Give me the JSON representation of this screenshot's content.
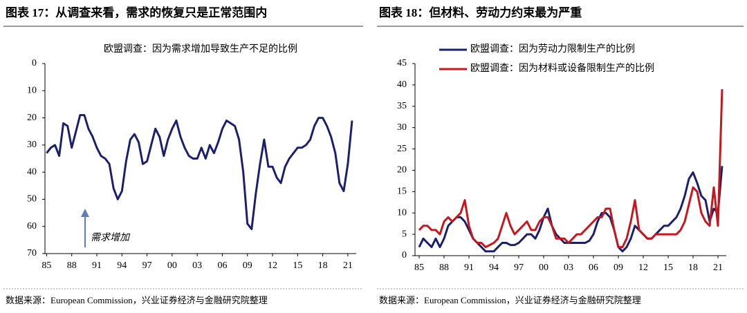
{
  "chart_data": [
    {
      "type": "line",
      "figure_title": "图表 17：从调查来看，需求的恢复只是正常范围内",
      "title": "欧盟调查：因为需求增加导致生产不足的比例",
      "annotation": "需求增加",
      "source": "数据来源：European Commission，兴业证券经济与金融研究院整理",
      "x": [
        1985,
        1985.5,
        1986,
        1986.5,
        1987,
        1987.5,
        1988,
        1988.5,
        1989,
        1989.5,
        1990,
        1990.5,
        1991,
        1991.5,
        1992,
        1992.5,
        1993,
        1993.5,
        1994,
        1994.5,
        1995,
        1995.5,
        1996,
        1996.5,
        1997,
        1997.5,
        1998,
        1998.5,
        1999,
        1999.5,
        2000,
        2000.5,
        2001,
        2001.5,
        2002,
        2002.5,
        2003,
        2003.5,
        2004,
        2004.5,
        2005,
        2005.5,
        2006,
        2006.5,
        2007,
        2007.5,
        2008,
        2008.5,
        2009,
        2009.5,
        2010,
        2010.5,
        2011,
        2011.5,
        2012,
        2012.5,
        2013,
        2013.5,
        2014,
        2014.5,
        2015,
        2015.5,
        2016,
        2016.5,
        2017,
        2017.5,
        2018,
        2018.5,
        2019,
        2019.5,
        2020,
        2020.5,
        2021,
        2021.5
      ],
      "series": [
        {
          "name": "欧盟调查：因为需求增加导致生产不足的比例",
          "color": "#1a1f6e",
          "values": [
            33,
            31,
            30,
            34,
            22,
            23,
            31,
            25,
            19,
            19,
            24,
            27,
            31,
            34,
            35,
            37,
            46,
            50,
            47,
            36,
            28,
            26,
            29,
            37,
            36,
            30,
            24,
            27,
            34,
            28,
            24,
            21,
            27,
            31,
            34,
            35,
            35,
            31,
            35,
            30,
            33,
            29,
            24,
            21,
            22,
            23,
            28,
            40,
            59,
            61,
            48,
            37,
            28,
            38,
            38,
            42,
            44,
            38,
            35,
            33,
            31,
            31,
            30,
            28,
            23,
            20,
            20,
            23,
            27,
            33,
            44,
            47,
            37,
            21
          ]
        }
      ],
      "xlim": [
        1984.8,
        2022
      ],
      "ylim": [
        0,
        70
      ],
      "inverted": true,
      "yticks": [
        0,
        10,
        20,
        30,
        40,
        50,
        60,
        70
      ],
      "xticks": [
        {
          "value": 1985,
          "label": "85"
        },
        {
          "value": 1988,
          "label": "88"
        },
        {
          "value": 1991,
          "label": "91"
        },
        {
          "value": 1994,
          "label": "94"
        },
        {
          "value": 1997,
          "label": "97"
        },
        {
          "value": 2000,
          "label": "00"
        },
        {
          "value": 2003,
          "label": "03"
        },
        {
          "value": 2006,
          "label": "06"
        },
        {
          "value": 2009,
          "label": "09"
        },
        {
          "value": 2012,
          "label": "12"
        },
        {
          "value": 2015,
          "label": "15"
        },
        {
          "value": 2018,
          "label": "18"
        },
        {
          "value": 2021,
          "label": "21"
        }
      ],
      "legend": false
    },
    {
      "type": "line",
      "figure_title": "图表 18：但材料、劳动力约束最为严重",
      "source": "数据来源：European Commission，兴业证券经济与金融研究院整理",
      "x": [
        1985,
        1985.5,
        1986,
        1986.5,
        1987,
        1987.5,
        1988,
        1988.5,
        1989,
        1989.5,
        1990,
        1990.5,
        1991,
        1991.5,
        1992,
        1992.5,
        1993,
        1993.5,
        1994,
        1994.5,
        1995,
        1995.5,
        1996,
        1996.5,
        1997,
        1997.5,
        1998,
        1998.5,
        1999,
        1999.5,
        2000,
        2000.5,
        2001,
        2001.5,
        2002,
        2002.5,
        2003,
        2003.5,
        2004,
        2004.5,
        2005,
        2005.5,
        2006,
        2006.5,
        2007,
        2007.5,
        2008,
        2008.5,
        2009,
        2009.5,
        2010,
        2010.5,
        2011,
        2011.5,
        2012,
        2012.5,
        2013,
        2013.5,
        2014,
        2014.5,
        2015,
        2015.5,
        2016,
        2016.5,
        2017,
        2017.5,
        2018,
        2018.5,
        2019,
        2019.5,
        2020,
        2020.5,
        2021,
        2021.5
      ],
      "series": [
        {
          "name": "欧盟调查：因为劳动力限制生产的比例",
          "color": "#1a1f6e",
          "values": [
            2,
            4,
            3,
            2,
            4,
            2,
            4,
            7,
            8,
            9,
            9,
            8,
            6,
            4,
            3,
            2,
            1,
            1,
            1,
            2,
            3,
            3,
            2.5,
            2.5,
            3,
            4,
            5,
            5,
            4,
            6,
            9,
            11,
            7,
            5,
            4,
            3,
            3,
            3,
            3,
            3,
            3,
            3.5,
            5,
            8,
            10,
            10,
            9,
            6,
            2,
            1,
            2,
            4,
            7,
            6,
            5,
            4,
            4,
            5,
            6,
            7,
            7,
            8,
            9,
            11,
            14,
            18,
            19.5,
            17,
            14,
            13,
            8,
            11,
            10,
            21
          ]
        },
        {
          "name": "欧盟调查：因为材料或设备限制生产的比例",
          "color": "#c8161d",
          "values": [
            6,
            7,
            7,
            6,
            6,
            5,
            8,
            9,
            8,
            9,
            10,
            13,
            7,
            4,
            3,
            3,
            2,
            2.5,
            3,
            4,
            7,
            10,
            7,
            5,
            6,
            7,
            8,
            6,
            6,
            8,
            9,
            9,
            7,
            4,
            4,
            4,
            3,
            4,
            5,
            5,
            6,
            7,
            8,
            9,
            9,
            11,
            11,
            6,
            2,
            2,
            4,
            8,
            13,
            6,
            5,
            4,
            4,
            5,
            5,
            5,
            5,
            5,
            5,
            6,
            8,
            12,
            16,
            15,
            10,
            8,
            7,
            16,
            7,
            39
          ]
        }
      ],
      "xlim": [
        1984.5,
        2022
      ],
      "ylim": [
        0,
        45
      ],
      "inverted": false,
      "yticks": [
        0,
        5,
        10,
        15,
        20,
        25,
        30,
        35,
        40,
        45
      ],
      "xticks": [
        {
          "value": 1985,
          "label": "85"
        },
        {
          "value": 1988,
          "label": "88"
        },
        {
          "value": 1991,
          "label": "91"
        },
        {
          "value": 1994,
          "label": "94"
        },
        {
          "value": 1997,
          "label": "97"
        },
        {
          "value": 2000,
          "label": "00"
        },
        {
          "value": 2003,
          "label": "03"
        },
        {
          "value": 2006,
          "label": "06"
        },
        {
          "value": 2009,
          "label": "09"
        },
        {
          "value": 2012,
          "label": "12"
        },
        {
          "value": 2015,
          "label": "15"
        },
        {
          "value": 2018,
          "label": "18"
        },
        {
          "value": 2021,
          "label": "21"
        }
      ],
      "legend": "upper left"
    }
  ]
}
